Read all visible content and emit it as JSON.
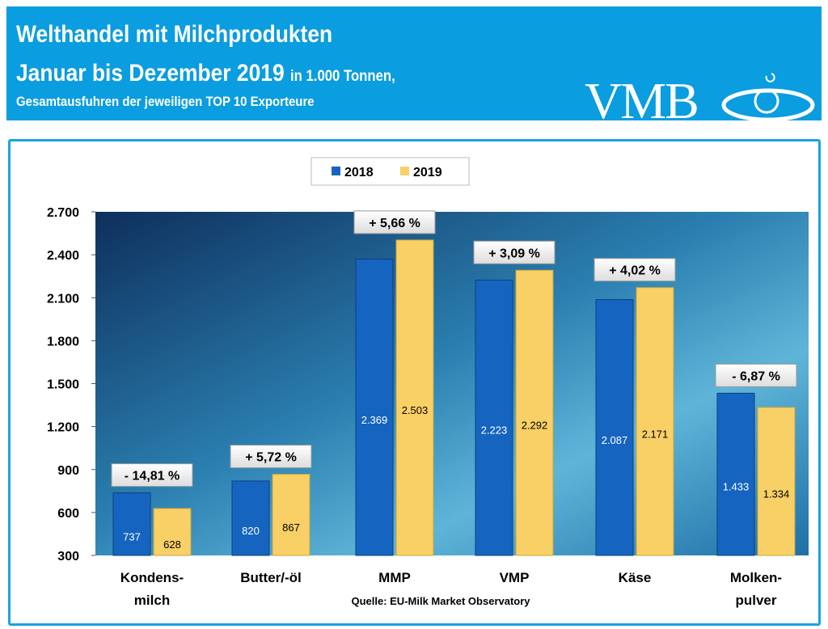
{
  "header": {
    "title": "Welthandel mit Milchprodukten",
    "subtitle_main": "Januar bis Dezember 2019",
    "subtitle_unit": "in 1.000 Tonnen,",
    "subtitle2": "Gesamtausfuhren der jeweiligen TOP 10 Exporteure",
    "logo": "VMB"
  },
  "colors": {
    "header_bg": "#0a9ddf",
    "series_2018": "#1565c0",
    "series_2019": "#f9d066"
  },
  "chart_data": {
    "type": "bar",
    "categories": [
      "Kondens-\nmilch",
      "Butter/-öl",
      "MMP",
      "VMP",
      "Käse",
      "Molken-\npulver"
    ],
    "series": [
      {
        "name": "2018",
        "values": [
          737,
          820,
          2369,
          2223,
          2087,
          1433
        ],
        "labels": [
          "737",
          "820",
          "2.369",
          "2.223",
          "2.087",
          "1.433"
        ]
      },
      {
        "name": "2019",
        "values": [
          628,
          867,
          2503,
          2292,
          2171,
          1334
        ],
        "labels": [
          "628",
          "867",
          "2.503",
          "2.292",
          "2.171",
          "1.334"
        ]
      }
    ],
    "annotations": [
      "- 14,81 %",
      "+ 5,72 %",
      "+ 5,66 %",
      "+ 3,09 %",
      "+ 4,02 %",
      "- 6,87 %"
    ],
    "ylim": [
      300,
      2700
    ],
    "yticks": [
      300,
      600,
      900,
      1200,
      1500,
      1800,
      2100,
      2400,
      2700
    ],
    "ytick_labels": [
      "300",
      "600",
      "900",
      "1.200",
      "1.500",
      "1.800",
      "2.100",
      "2.400",
      "2.700"
    ],
    "legend_placement": "top",
    "source": "Quelle: EU-Milk Market Observatory"
  }
}
